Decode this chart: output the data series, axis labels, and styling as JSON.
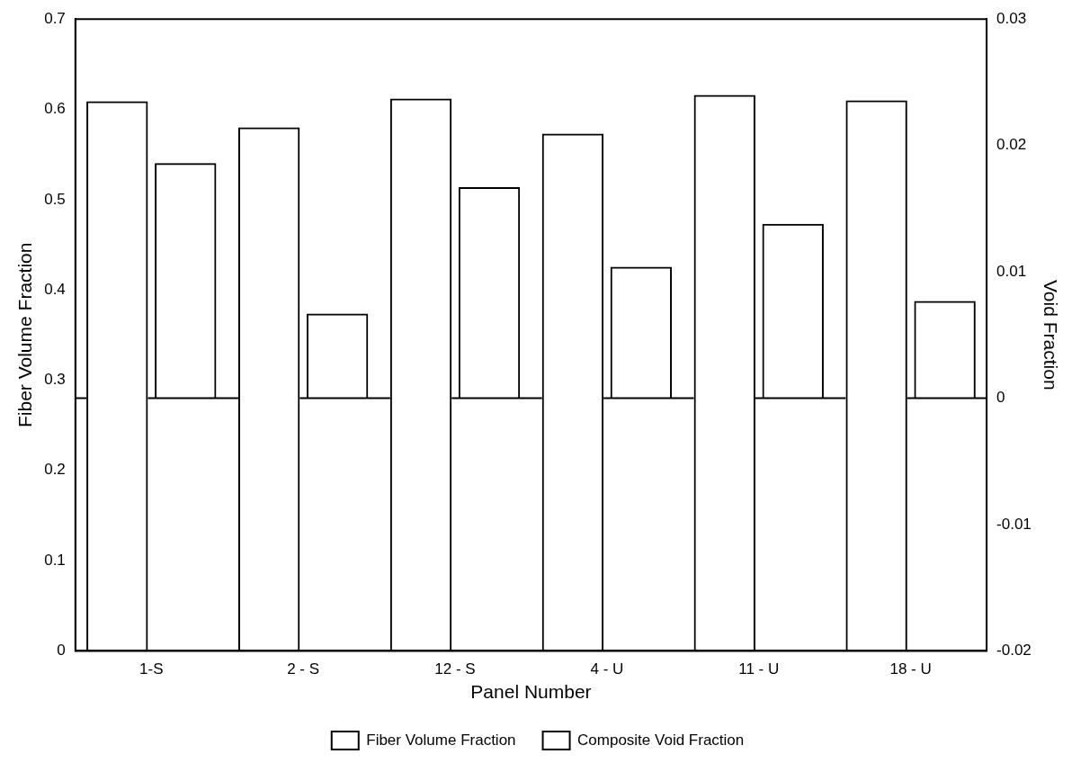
{
  "chart_data": {
    "type": "bar",
    "xlabel": "Panel Number",
    "ylabel": "Fiber Volume Fraction",
    "y2label": "Void Fraction",
    "categories": [
      "1-S",
      "2 - S",
      "12 - S",
      "4 - U",
      "11 - U",
      "18 - U"
    ],
    "series": [
      {
        "name": "Fiber Volume Fraction",
        "color": "#000000",
        "values": [
          0.609,
          0.58,
          0.612,
          0.573,
          0.616,
          0.61
        ]
      },
      {
        "name": "Composite Void Fraction",
        "color": "#000000",
        "axis": "y2",
        "values": [
          0.0186,
          0.0067,
          0.0167,
          0.0104,
          0.0138,
          0.0077
        ]
      }
    ],
    "ylim": [
      0,
      0.7
    ],
    "yticks": [
      0,
      0.1,
      0.2,
      0.3,
      0.4,
      0.5,
      0.6,
      0.7
    ],
    "y2lim": [
      -0.02,
      0.03
    ],
    "y2ticks": [
      -0.02,
      -0.01,
      0,
      0.01,
      0.02,
      0.03
    ],
    "ref_lines": [
      {
        "axis": "y2",
        "value": 0
      }
    ],
    "grid": false,
    "legend": "bottom"
  }
}
